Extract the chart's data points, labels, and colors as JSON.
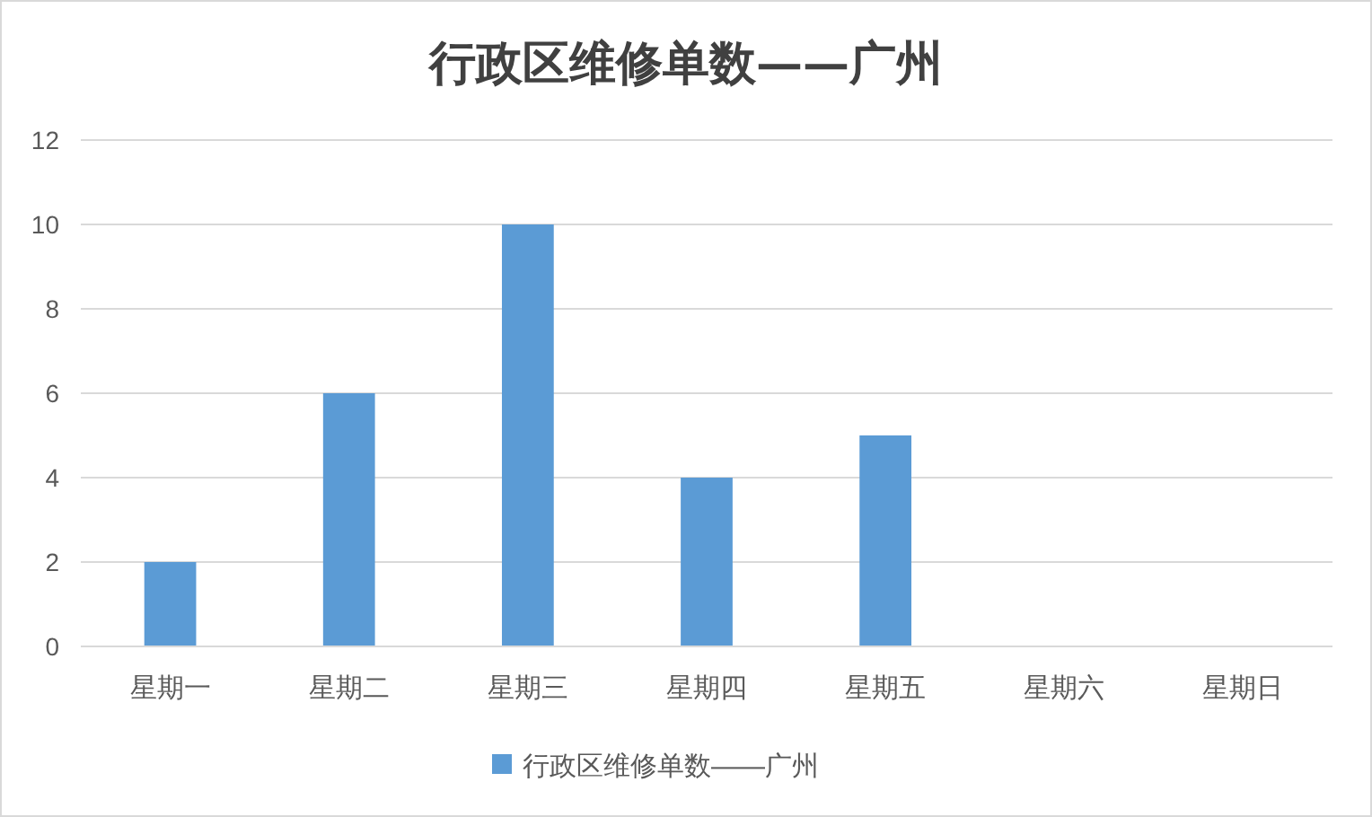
{
  "chart_data": {
    "type": "bar",
    "title": "行政区维修单数——广州",
    "categories": [
      "星期一",
      "星期二",
      "星期三",
      "星期四",
      "星期五",
      "星期六",
      "星期日"
    ],
    "series": [
      {
        "name": "行政区维修单数——广州",
        "color": "#5b9bd5",
        "values": [
          2,
          6,
          10,
          4,
          5,
          0,
          0
        ]
      }
    ],
    "ylim": [
      0,
      12
    ],
    "yticks": [
      0,
      2,
      4,
      6,
      8,
      10,
      12
    ],
    "grid": "y",
    "legend": "bottom"
  }
}
